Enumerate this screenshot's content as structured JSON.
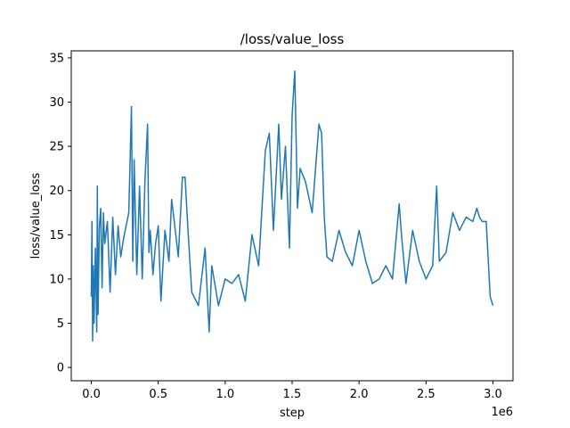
{
  "chart_data": {
    "type": "line",
    "title": "/loss/value_loss",
    "xlabel": "step",
    "ylabel": "loss/value_loss",
    "x_offset_label": "1e6",
    "xlim": [
      -0.15,
      3.15
    ],
    "ylim": [
      -1.5,
      35.8
    ],
    "x_ticks": [
      0.0,
      0.5,
      1.0,
      1.5,
      2.0,
      2.5,
      3.0
    ],
    "x_tick_labels": [
      "0.0",
      "0.5",
      "1.0",
      "1.5",
      "2.0",
      "2.5",
      "3.0"
    ],
    "y_ticks": [
      0,
      5,
      10,
      15,
      20,
      25,
      30,
      35
    ],
    "y_tick_labels": [
      "0",
      "5",
      "10",
      "15",
      "20",
      "25",
      "30",
      "35"
    ],
    "grid": false,
    "series": [
      {
        "color": "#1f77b4",
        "x_units": "1e6 steps",
        "x": [
          0.0,
          0.005,
          0.01,
          0.015,
          0.02,
          0.03,
          0.04,
          0.045,
          0.05,
          0.06,
          0.07,
          0.08,
          0.09,
          0.1,
          0.12,
          0.14,
          0.16,
          0.18,
          0.2,
          0.22,
          0.24,
          0.26,
          0.28,
          0.3,
          0.31,
          0.32,
          0.34,
          0.36,
          0.38,
          0.4,
          0.42,
          0.43,
          0.44,
          0.46,
          0.48,
          0.5,
          0.52,
          0.55,
          0.58,
          0.6,
          0.62,
          0.65,
          0.68,
          0.7,
          0.72,
          0.75,
          0.8,
          0.85,
          0.88,
          0.9,
          0.95,
          1.0,
          1.05,
          1.1,
          1.15,
          1.2,
          1.25,
          1.3,
          1.33,
          1.36,
          1.4,
          1.42,
          1.45,
          1.48,
          1.5,
          1.52,
          1.54,
          1.56,
          1.6,
          1.65,
          1.7,
          1.72,
          1.74,
          1.76,
          1.8,
          1.85,
          1.9,
          1.95,
          2.0,
          2.05,
          2.1,
          2.15,
          2.2,
          2.25,
          2.3,
          2.32,
          2.35,
          2.4,
          2.45,
          2.5,
          2.55,
          2.58,
          2.6,
          2.65,
          2.7,
          2.75,
          2.8,
          2.85,
          2.88,
          2.9,
          2.92,
          2.95,
          2.98,
          3.0
        ],
        "y": [
          8.0,
          16.5,
          3.0,
          11.5,
          5.0,
          13.5,
          4.0,
          20.5,
          6.0,
          16.0,
          18.0,
          9.0,
          17.5,
          14.0,
          16.5,
          8.5,
          17.0,
          10.5,
          16.0,
          12.5,
          14.5,
          16.0,
          17.5,
          29.5,
          12.0,
          23.5,
          10.5,
          20.5,
          10.0,
          21.0,
          27.5,
          13.0,
          15.5,
          10.5,
          14.0,
          16.0,
          7.5,
          15.5,
          12.0,
          19.0,
          16.5,
          12.5,
          21.5,
          21.5,
          16.0,
          8.5,
          7.0,
          13.5,
          4.0,
          11.5,
          7.0,
          10.0,
          9.5,
          10.5,
          7.5,
          15.0,
          11.5,
          24.5,
          26.5,
          15.5,
          27.5,
          19.0,
          25.0,
          13.5,
          28.5,
          33.5,
          18.0,
          22.5,
          21.0,
          17.5,
          27.5,
          26.5,
          17.0,
          12.5,
          12.0,
          15.5,
          13.0,
          11.5,
          15.5,
          12.0,
          9.5,
          10.0,
          11.5,
          10.0,
          18.5,
          14.5,
          9.5,
          15.5,
          12.0,
          10.0,
          11.5,
          20.5,
          12.0,
          13.0,
          17.5,
          15.5,
          17.0,
          16.5,
          18.0,
          17.0,
          16.5,
          16.5,
          8.0,
          7.0
        ]
      }
    ]
  }
}
